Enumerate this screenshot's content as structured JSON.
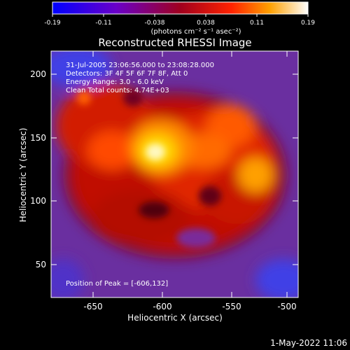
{
  "title": "Reconstructed RHESSI Image",
  "colorbar": {
    "tick_labels": [
      "-0.19",
      "-0.11",
      "-0.038",
      "0.038",
      "0.11",
      "0.19"
    ],
    "units_label": "(photons cm⁻² s⁻¹ asec⁻²)"
  },
  "annotations": {
    "time_range": "31-Jul-2005 23:06:56.000 to 23:08:28.000",
    "detectors": "Detectors: 3F 4F 5F 6F 7F 8F, Att 0",
    "energy_range": "Energy Range: 3.0 - 6.0 keV",
    "clean_total": "Clean     Total counts: 4.74E+03",
    "peak": "Position of Peak = [-606,132]"
  },
  "axes": {
    "xlabel": "Heliocentric X (arcsec)",
    "ylabel": "Heliocentric Y (arcsec)",
    "x_tick_labels": [
      "-650",
      "-600",
      "-550",
      "-500"
    ],
    "y_tick_labels": [
      "50",
      "100",
      "150",
      "200"
    ],
    "xlim": [
      -678,
      -488
    ],
    "ylim": [
      27,
      222
    ]
  },
  "timestamp": "1-May-2022 11:06",
  "image": {
    "colormap": "blue-purple-red-yellow-white",
    "peak_position": [
      -606,
      132
    ]
  }
}
